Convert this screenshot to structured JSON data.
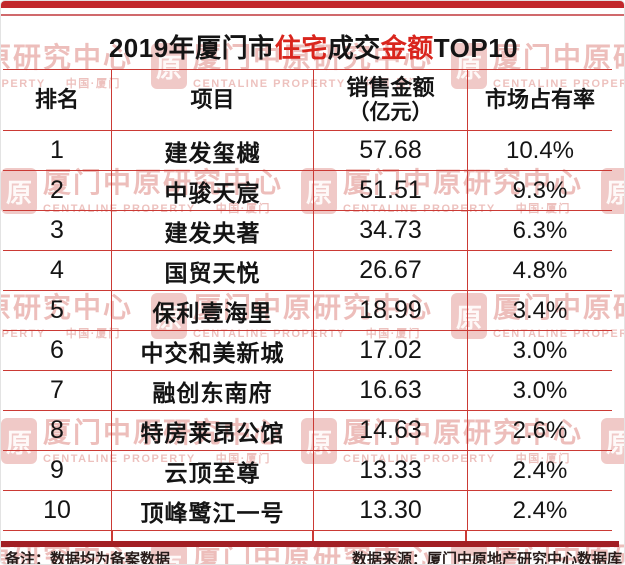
{
  "title": {
    "part1": "2019年厦门市",
    "highlight1": "住宅",
    "part2": "成交",
    "highlight2": "金额",
    "part3": "TOP10"
  },
  "table": {
    "headers": {
      "rank": "排名",
      "project": "项目",
      "amount_line1": "销售金额",
      "amount_line2": "（亿元）",
      "share": "市场占有率"
    },
    "rows": [
      {
        "rank": "1",
        "project": "建发玺樾",
        "amount": "57.68",
        "share": "10.4%"
      },
      {
        "rank": "2",
        "project": "中骏天宸",
        "amount": "51.51",
        "share": "9.3%"
      },
      {
        "rank": "3",
        "project": "建发央著",
        "amount": "34.73",
        "share": "6.3%"
      },
      {
        "rank": "4",
        "project": "国贸天悦",
        "amount": "26.67",
        "share": "4.8%"
      },
      {
        "rank": "5",
        "project": "保利壹海里",
        "amount": "18.99",
        "share": "3.4%"
      },
      {
        "rank": "6",
        "project": "中交和美新城",
        "amount": "17.02",
        "share": "3.0%"
      },
      {
        "rank": "7",
        "project": "融创东南府",
        "amount": "16.63",
        "share": "3.0%"
      },
      {
        "rank": "8",
        "project": "特房莱昂公馆",
        "amount": "14.63",
        "share": "2.6%"
      },
      {
        "rank": "9",
        "project": "云顶至尊",
        "amount": "13.33",
        "share": "2.4%"
      },
      {
        "rank": "10",
        "project": "顶峰鹭江一号",
        "amount": "13.30",
        "share": "2.4%"
      }
    ]
  },
  "footer": {
    "note": "备注：数据均为备案数据",
    "source": "数据来源：厦门中原地产研究中心数据库"
  },
  "watermark": {
    "logo_glyph": "原",
    "cn": "厦门中原研究中心",
    "en": "CENTALINE PROPERTY",
    "region": "中国·厦门"
  },
  "colors": {
    "top_bar": "#c2282c",
    "title_highlight": "#d9251d",
    "table_border": "#cb3a35",
    "footer_bar": "#a21f24",
    "watermark_pink": "#d3635d"
  }
}
